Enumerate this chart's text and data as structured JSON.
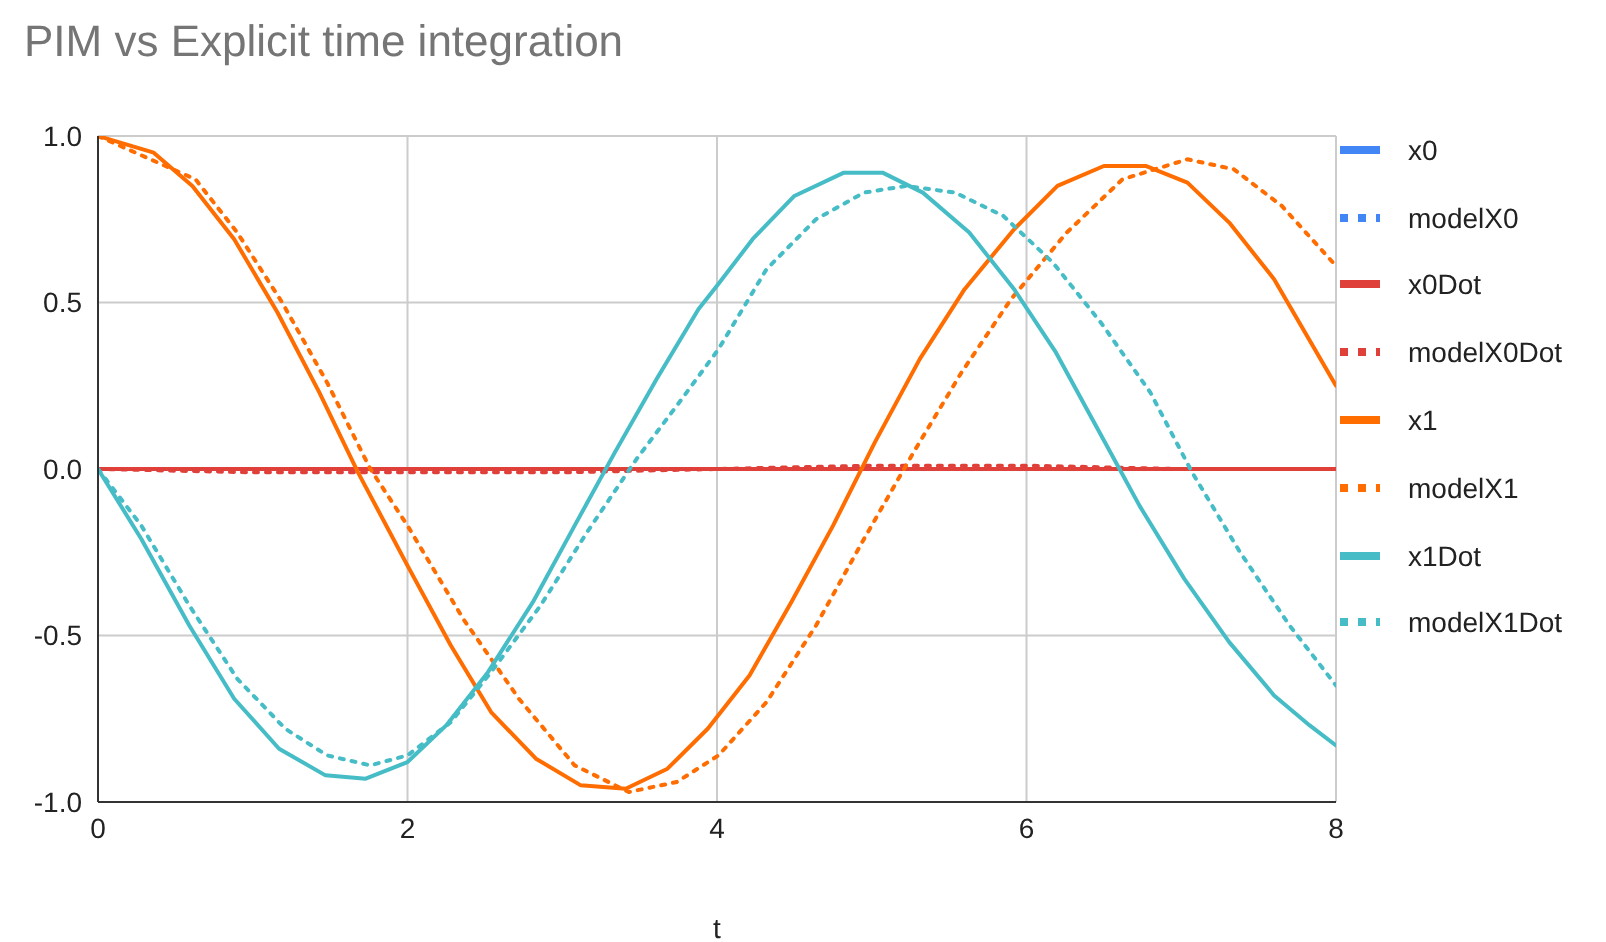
{
  "chart_data": {
    "type": "line",
    "title": "PIM vs Explicit time integration",
    "xlabel": "t",
    "xlim": [
      0,
      8
    ],
    "xticks": [
      0,
      2,
      4,
      6,
      8
    ],
    "ylim": [
      -1,
      1
    ],
    "yticks": [
      {
        "value": -1,
        "label": "-1.0"
      },
      {
        "value": -0.5,
        "label": "-0.5"
      },
      {
        "value": 0,
        "label": "0.0"
      },
      {
        "value": 0.5,
        "label": "0.5"
      },
      {
        "value": 1,
        "label": "1.0"
      }
    ],
    "grid": true,
    "legend": "right",
    "marker": "none",
    "series": [
      {
        "name": "x0",
        "color": "#4285f4",
        "line_style": "solid"
      },
      {
        "name": "modelX0",
        "color": "#4285f4",
        "line_style": "dotted"
      },
      {
        "name": "x0Dot",
        "color": "#e0403a",
        "line_style": "solid",
        "x": [
          0,
          2,
          4,
          6,
          8
        ],
        "values": [
          0,
          0,
          0,
          0,
          0
        ]
      },
      {
        "name": "modelX0Dot",
        "color": "#e0403a",
        "line_style": "dotted",
        "x": [
          0,
          1,
          2,
          3,
          4,
          5,
          6,
          7,
          8
        ],
        "values": [
          0,
          -0.01,
          -0.01,
          -0.01,
          0,
          0.01,
          0.01,
          0,
          0
        ]
      },
      {
        "name": "x1",
        "color": "#ff6d01",
        "line_style": "solid",
        "x": [
          0,
          0.36,
          0.61,
          0.88,
          1.16,
          1.43,
          1.68,
          2.0,
          2.28,
          2.54,
          2.83,
          3.12,
          3.41,
          3.68,
          3.94,
          4.21,
          4.48,
          4.75,
          5.02,
          5.31,
          5.6,
          5.92,
          6.2,
          6.5,
          6.77,
          7.04,
          7.31,
          7.6,
          8.0
        ],
        "values": [
          1.0,
          0.95,
          0.85,
          0.69,
          0.47,
          0.23,
          -0.01,
          -0.29,
          -0.53,
          -0.73,
          -0.87,
          -0.95,
          -0.96,
          -0.9,
          -0.78,
          -0.62,
          -0.4,
          -0.17,
          0.08,
          0.33,
          0.54,
          0.72,
          0.85,
          0.91,
          0.91,
          0.86,
          0.74,
          0.57,
          0.25
        ]
      },
      {
        "name": "modelX1",
        "color": "#ff6d01",
        "line_style": "dotted",
        "x": [
          0,
          0.63,
          0.9,
          1.19,
          1.48,
          1.76,
          2.0,
          2.36,
          2.72,
          3.08,
          3.43,
          3.74,
          4.01,
          4.32,
          4.64,
          4.95,
          5.27,
          5.58,
          5.9,
          6.26,
          6.62,
          7.04,
          7.34,
          7.65,
          8.0
        ],
        "values": [
          1.0,
          0.87,
          0.71,
          0.5,
          0.26,
          0.0,
          -0.17,
          -0.45,
          -0.69,
          -0.89,
          -0.97,
          -0.94,
          -0.86,
          -0.7,
          -0.47,
          -0.21,
          0.05,
          0.29,
          0.51,
          0.71,
          0.87,
          0.93,
          0.9,
          0.79,
          0.61
        ]
      },
      {
        "name": "x1Dot",
        "color": "#46bdc6",
        "line_style": "solid",
        "x": [
          0,
          0.28,
          0.59,
          0.88,
          1.17,
          1.47,
          1.73,
          2.0,
          2.25,
          2.52,
          2.81,
          3.08,
          3.34,
          3.61,
          3.88,
          4.0,
          4.23,
          4.5,
          4.82,
          5.07,
          5.33,
          5.63,
          5.92,
          6.19,
          6.46,
          6.73,
          7.02,
          7.31,
          7.6,
          7.83,
          8.0
        ],
        "values": [
          0,
          -0.21,
          -0.47,
          -0.69,
          -0.84,
          -0.92,
          -0.93,
          -0.88,
          -0.77,
          -0.61,
          -0.4,
          -0.17,
          0.05,
          0.27,
          0.48,
          0.55,
          0.69,
          0.82,
          0.89,
          0.89,
          0.83,
          0.71,
          0.54,
          0.35,
          0.12,
          -0.11,
          -0.33,
          -0.52,
          -0.68,
          -0.77,
          -0.83
        ]
      },
      {
        "name": "modelX1Dot",
        "color": "#46bdc6",
        "line_style": "dotted",
        "x": [
          0,
          0.28,
          0.59,
          0.9,
          1.21,
          1.48,
          1.76,
          2.0,
          2.28,
          2.54,
          2.86,
          3.16,
          3.48,
          3.74,
          4.01,
          4.32,
          4.64,
          4.95,
          5.22,
          5.54,
          5.85,
          6.17,
          6.48,
          6.8,
          7.07,
          7.38,
          7.7,
          8.0
        ],
        "values": [
          0,
          -0.17,
          -0.41,
          -0.63,
          -0.78,
          -0.86,
          -0.89,
          -0.86,
          -0.76,
          -0.61,
          -0.41,
          -0.19,
          0.03,
          0.19,
          0.36,
          0.6,
          0.75,
          0.83,
          0.85,
          0.83,
          0.76,
          0.62,
          0.44,
          0.23,
          -0.01,
          -0.25,
          -0.47,
          -0.65
        ]
      }
    ]
  }
}
